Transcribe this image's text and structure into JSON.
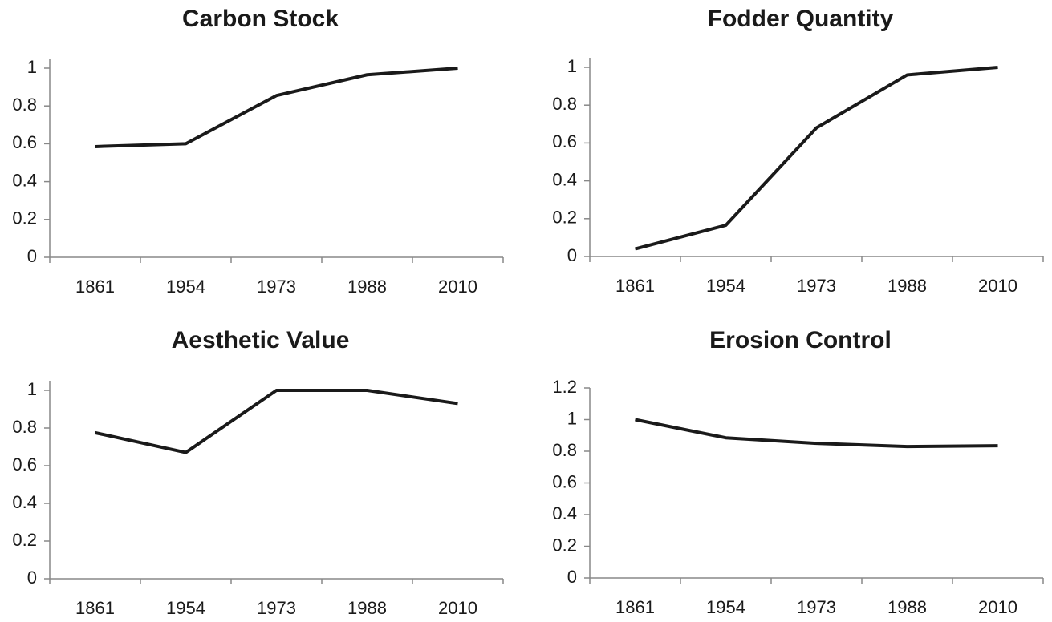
{
  "chart_data": [
    {
      "type": "line",
      "title": "Carbon Stock",
      "categories": [
        "1861",
        "1954",
        "1973",
        "1988",
        "2010"
      ],
      "series": [
        {
          "color": "#1a1a1a",
          "values": [
            0.585,
            0.6,
            0.855,
            0.965,
            1.0
          ]
        }
      ],
      "ylim": [
        0,
        1
      ],
      "yticks": [
        0,
        0.2,
        0.4,
        0.6,
        0.8,
        1
      ]
    },
    {
      "type": "line",
      "title": "Fodder Quantity",
      "categories": [
        "1861",
        "1954",
        "1973",
        "1988",
        "2010"
      ],
      "series": [
        {
          "color": "#1a1a1a",
          "values": [
            0.04,
            0.165,
            0.68,
            0.96,
            1.0
          ]
        }
      ],
      "ylim": [
        0,
        1
      ],
      "yticks": [
        0,
        0.2,
        0.4,
        0.6,
        0.8,
        1
      ]
    },
    {
      "type": "line",
      "title": "Aesthetic Value",
      "categories": [
        "1861",
        "1954",
        "1973",
        "1988",
        "2010"
      ],
      "series": [
        {
          "color": "#1a1a1a",
          "values": [
            0.775,
            0.67,
            1.0,
            1.0,
            0.93
          ]
        }
      ],
      "ylim": [
        0,
        1
      ],
      "yticks": [
        0,
        0.2,
        0.4,
        0.6,
        0.8,
        1
      ]
    },
    {
      "type": "line",
      "title": "Erosion Control",
      "categories": [
        "1861",
        "1954",
        "1973",
        "1988",
        "2010"
      ],
      "series": [
        {
          "color": "#1a1a1a",
          "values": [
            1.0,
            0.885,
            0.85,
            0.83,
            0.835
          ]
        }
      ],
      "ylim": [
        0,
        1.2
      ],
      "yticks": [
        0,
        0.2,
        0.4,
        0.6,
        0.8,
        1,
        1.2
      ]
    }
  ]
}
